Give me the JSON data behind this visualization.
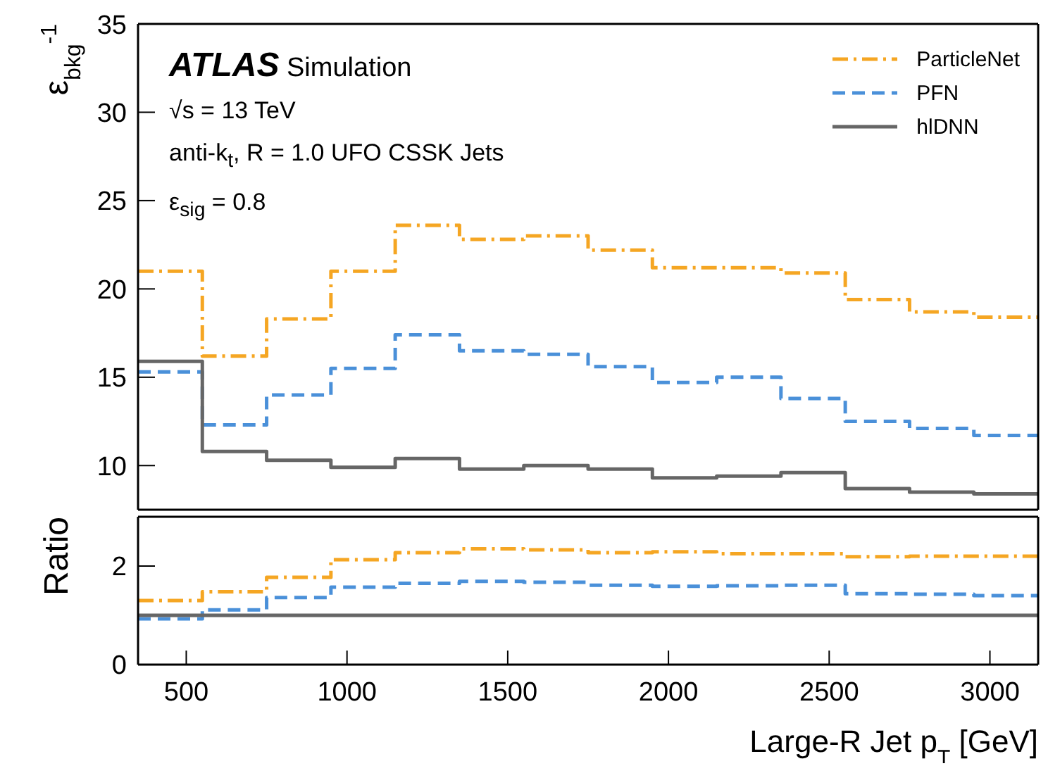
{
  "chart_data": [
    {
      "type": "histogram",
      "ylabel": "ε$_{bkg}$$^{-1}$",
      "annotations": [
        "ATLAS Simulation",
        "√s = 13 TeV",
        "anti-k$_{t}$, R = 1.0 UFO CSSK Jets",
        "ε$_{sig}$ = 0.8"
      ],
      "bins": [
        350,
        550,
        750,
        950,
        1150,
        1350,
        1550,
        1750,
        1950,
        2150,
        2350,
        2550,
        2750,
        2950,
        3150
      ],
      "series": [
        {
          "name": "ParticleNet",
          "color": "#f5a623",
          "line_style": "dashdot",
          "values": [
            21.0,
            16.2,
            18.3,
            21.0,
            23.6,
            22.8,
            23.0,
            22.2,
            21.2,
            21.2,
            20.9,
            19.4,
            18.7,
            18.4
          ]
        },
        {
          "name": "PFN",
          "color": "#4a90d9",
          "line_style": "dashed",
          "values": [
            15.3,
            12.3,
            14.0,
            15.5,
            17.4,
            16.5,
            16.3,
            15.6,
            14.7,
            15.0,
            13.8,
            12.5,
            12.1,
            11.7
          ]
        },
        {
          "name": "hlDNN",
          "color": "#666666",
          "line_style": "solid",
          "values": [
            15.9,
            10.8,
            10.3,
            9.9,
            10.4,
            9.8,
            10.0,
            9.8,
            9.3,
            9.4,
            9.6,
            8.7,
            8.5,
            8.4
          ]
        }
      ],
      "xlim": [
        350,
        3150
      ],
      "xticks": [
        500,
        1000,
        1500,
        2000,
        2500,
        3000
      ],
      "ylim": [
        7.5,
        35
      ],
      "yticks": [
        10,
        15,
        20,
        25,
        30,
        35
      ],
      "tick_labels": "y",
      "legend": "top right"
    },
    {
      "type": "histogram",
      "xlabel": "Large-R Jet p$_{T}$ [GeV]",
      "ylabel": "Ratio",
      "bins": [
        350,
        550,
        750,
        950,
        1150,
        1350,
        1550,
        1750,
        1950,
        2150,
        2350,
        2550,
        2750,
        2950,
        3150
      ],
      "series": [
        {
          "color": "#f5a623",
          "line_style": "dashdot",
          "values": [
            1.3,
            1.48,
            1.77,
            2.13,
            2.27,
            2.35,
            2.33,
            2.27,
            2.29,
            2.25,
            2.25,
            2.19,
            2.2,
            2.2
          ]
        },
        {
          "color": "#4a90d9",
          "line_style": "dashed",
          "values": [
            0.93,
            1.11,
            1.36,
            1.57,
            1.65,
            1.69,
            1.67,
            1.61,
            1.59,
            1.6,
            1.61,
            1.44,
            1.43,
            1.4
          ]
        },
        {
          "color": "#666666",
          "line_style": "solid",
          "values": [
            1.0,
            1.0,
            1.0,
            1.0,
            1.0,
            1.0,
            1.0,
            1.0,
            1.0,
            1.0,
            1.0,
            1.0,
            1.0,
            1.0
          ]
        }
      ],
      "xlim": [
        350,
        3150
      ],
      "xticks": [
        500,
        1000,
        1500,
        2000,
        2500,
        3000
      ],
      "ylim": [
        0,
        3
      ],
      "yticks": [
        0,
        2
      ]
    }
  ]
}
